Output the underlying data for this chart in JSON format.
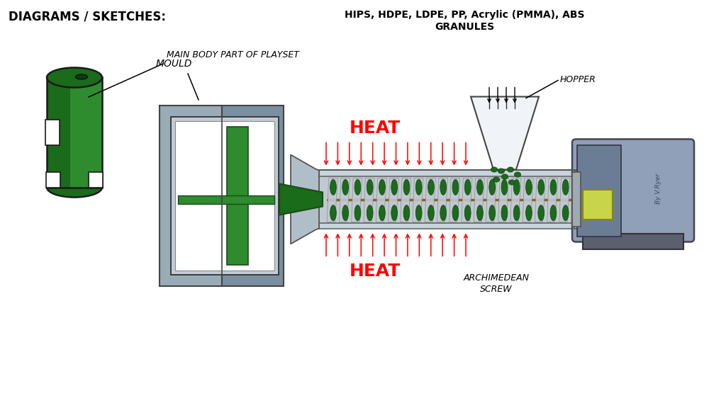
{
  "title": "DIAGRAMS / SKETCHES:",
  "bg_color": "#ffffff",
  "label_main_body": "MAIN BODY PART OF PLAYSET",
  "label_mould": "MOULD",
  "label_granules": "HIPS, HDPE, LDPE, PP, Acrylic (PMMA), ABS\nGRANULES",
  "label_heat_top": "HEAT",
  "label_heat_bottom": "HEAT",
  "label_hopper": "HOPPER",
  "label_screw": "ARCHIMEDEAN\nSCREW",
  "label_byvryer": "By V.Ryer",
  "green_dark": "#1a6b1a",
  "green_mid": "#2e8b2e",
  "green_light": "#3dab3d",
  "gray_mould_light": "#9aabb8",
  "gray_mould_dark": "#7a8f9f",
  "gray_barrel_light": "#c8d4dc",
  "gray_barrel_dark": "#b0bec8",
  "gray_motor_light": "#8fa0b8",
  "gray_motor_dark": "#6b7d95",
  "gray_motor_bottom": "#5a6070",
  "red_heat": "#ff0000",
  "white": "#ffffff",
  "black": "#000000",
  "screw_silver": "#c0c8d0",
  "screw_silver_dark": "#9098a0"
}
